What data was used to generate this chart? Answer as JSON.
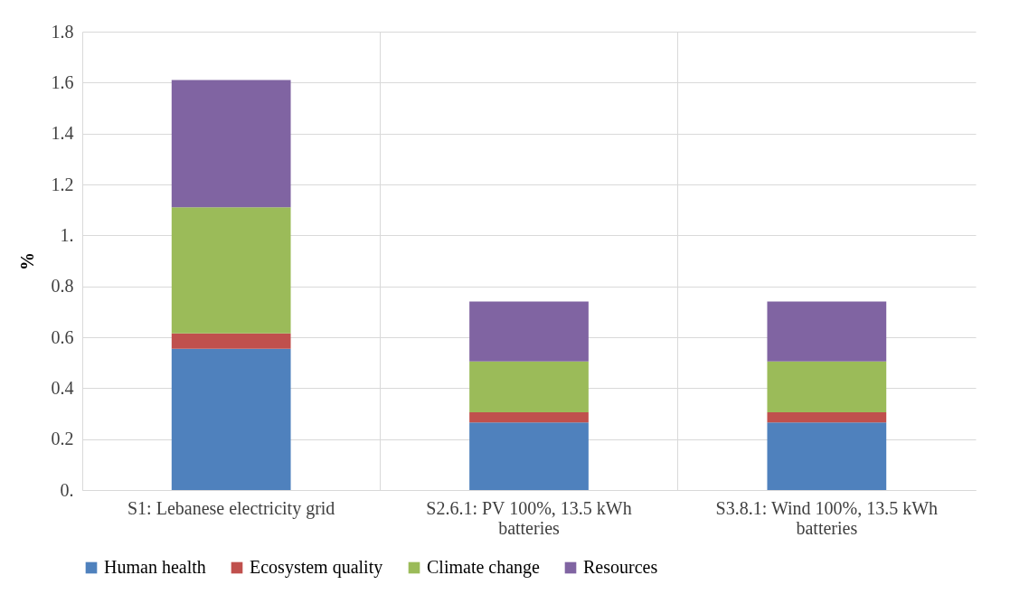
{
  "chart_data": {
    "type": "bar",
    "stacked": true,
    "ylabel": "%",
    "categories": [
      "S1: Lebanese electricity grid",
      "S2.6.1: PV 100%, 13.5 kWh batteries",
      "S3.8.1: Wind 100%, 13.5 kWh batteries"
    ],
    "series": [
      {
        "name": "Human health",
        "color": "#4f81bd",
        "values": [
          0.555,
          0.265,
          0.265
        ]
      },
      {
        "name": "Ecosystem quality",
        "color": "#c0504d",
        "values": [
          0.06,
          0.04,
          0.04
        ]
      },
      {
        "name": "Climate change",
        "color": "#9bbb59",
        "values": [
          0.495,
          0.2,
          0.2
        ]
      },
      {
        "name": "Resources",
        "color": "#8064a2",
        "values": [
          0.5,
          0.235,
          0.235
        ]
      }
    ],
    "ylim": [
      0,
      1.8
    ],
    "yticks": [
      {
        "value": 0,
        "label": "0."
      },
      0.2,
      0.4,
      0.6,
      0.8,
      {
        "value": 1,
        "label": "1."
      },
      1.2,
      1.4,
      1.6,
      1.8
    ],
    "grid": true,
    "legend": "bottom"
  }
}
